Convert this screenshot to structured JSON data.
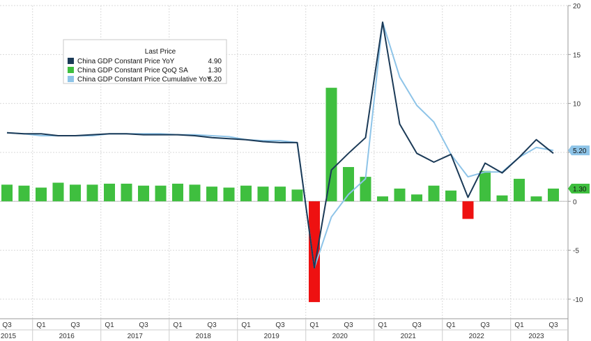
{
  "chart_data": {
    "type": "bar",
    "legend": {
      "title": "Last Price",
      "placement": "top-left",
      "entries": [
        {
          "name": "China GDP Constant Price YoY",
          "value": "4.90",
          "color": "#1b3a57"
        },
        {
          "name": "China GDP Constant Price QoQ SA",
          "value": "1.30",
          "color": "#3fbf3f"
        },
        {
          "name": "China GDP Constant Price Cumulative YoY",
          "value": "5.20",
          "color": "#8ec4e8"
        }
      ]
    },
    "x": [
      "2015Q3",
      "2015Q4",
      "2016Q1",
      "2016Q2",
      "2016Q3",
      "2016Q4",
      "2017Q1",
      "2017Q2",
      "2017Q3",
      "2017Q4",
      "2018Q1",
      "2018Q2",
      "2018Q3",
      "2018Q4",
      "2019Q1",
      "2019Q2",
      "2019Q3",
      "2019Q4",
      "2020Q1",
      "2020Q2",
      "2020Q3",
      "2020Q4",
      "2021Q1",
      "2021Q2",
      "2021Q3",
      "2021Q4",
      "2022Q1",
      "2022Q2",
      "2022Q3",
      "2022Q4",
      "2023Q1",
      "2023Q2",
      "2023Q3"
    ],
    "series": [
      {
        "name": "China GDP Constant Price QoQ SA",
        "kind": "bar",
        "color": "#3fbf3f",
        "negative_color": "#ee1111",
        "values": [
          1.7,
          1.6,
          1.4,
          1.9,
          1.7,
          1.7,
          1.8,
          1.8,
          1.6,
          1.6,
          1.8,
          1.7,
          1.5,
          1.4,
          1.6,
          1.5,
          1.5,
          1.2,
          -10.3,
          11.6,
          3.5,
          2.5,
          0.5,
          1.3,
          0.7,
          1.6,
          1.1,
          -1.8,
          3.1,
          0.6,
          2.3,
          0.5,
          1.3
        ]
      },
      {
        "name": "China GDP Constant Price YoY",
        "kind": "line",
        "color": "#1b3a57",
        "values": [
          7.0,
          6.9,
          6.9,
          6.7,
          6.7,
          6.8,
          6.9,
          6.9,
          6.8,
          6.8,
          6.8,
          6.7,
          6.5,
          6.4,
          6.3,
          6.1,
          6.0,
          6.0,
          -6.8,
          3.2,
          4.9,
          6.5,
          18.3,
          7.9,
          4.9,
          4.0,
          4.8,
          0.4,
          3.9,
          2.9,
          4.5,
          6.3,
          4.9
        ]
      },
      {
        "name": "China GDP Constant Price Cumulative YoY",
        "kind": "line",
        "color": "#8ec4e8",
        "values": [
          7.0,
          6.9,
          6.7,
          6.7,
          6.7,
          6.7,
          6.9,
          6.9,
          6.9,
          6.9,
          6.8,
          6.8,
          6.7,
          6.6,
          6.3,
          6.2,
          6.2,
          6.0,
          -6.8,
          -1.6,
          0.7,
          2.3,
          18.3,
          12.7,
          9.8,
          8.1,
          4.8,
          2.5,
          3.0,
          3.0,
          4.5,
          5.5,
          5.2
        ]
      }
    ],
    "ylim": [
      -12,
      20
    ],
    "y_ticks": [
      -10,
      -5,
      0,
      5,
      10,
      15,
      20
    ],
    "y_tick_labels": [
      "-10",
      "-5",
      "0",
      "5",
      "10",
      "15",
      "20"
    ],
    "y_axis_side": "right",
    "quarter_tick_labels": [
      "Q3",
      "Q1",
      "Q3",
      "Q1",
      "Q3",
      "Q1",
      "Q3",
      "Q1",
      "Q3",
      "Q1",
      "Q3",
      "Q1",
      "Q3",
      "Q1",
      "Q3",
      "Q1",
      "Q3"
    ],
    "year_labels": [
      "2015",
      "2016",
      "2017",
      "2018",
      "2019",
      "2020",
      "2021",
      "2022",
      "2023"
    ],
    "grid": true,
    "last_value_tags": [
      {
        "label": "5.20",
        "value": 5.2,
        "color": "#8ec4e8"
      },
      {
        "label": "1.30",
        "value": 1.3,
        "color": "#3fbf3f"
      }
    ]
  }
}
